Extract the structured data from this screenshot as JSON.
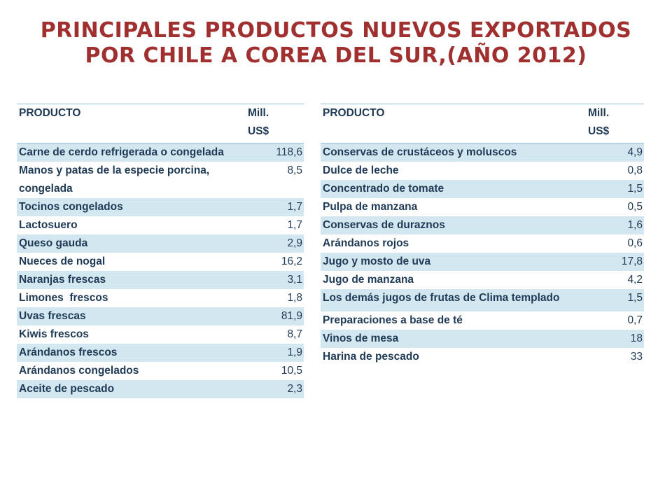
{
  "title": {
    "line1": "PRINCIPALES PRODUCTOS NUEVOS EXPORTADOS",
    "line2": "POR CHILE A COREA DEL SUR,(AÑO 2012)"
  },
  "left_table": {
    "header": {
      "product": "PRODUCTO",
      "value_line1": "Mill.",
      "value_line2": "US$"
    },
    "rows": [
      {
        "product": "Carne de cerdo refrigerada o congelada",
        "value": "118,6"
      },
      {
        "product": "Manos y patas de la especie porcina, congelada",
        "value": "8,5"
      },
      {
        "product": "Tocinos congelados",
        "value": "1,7"
      },
      {
        "product": "Lactosuero",
        "value": "1,7"
      },
      {
        "product": "Queso gauda",
        "value": "2,9"
      },
      {
        "product": "Nueces de nogal",
        "value": "16,2"
      },
      {
        "product": "Naranjas frescas",
        "value": "3,1"
      },
      {
        "product": "Limones  frescos",
        "value": "1,8"
      },
      {
        "product": "Uvas frescas",
        "value": "81,9"
      },
      {
        "product": "Kiwis frescos",
        "value": "8,7"
      },
      {
        "product": "Arándanos frescos",
        "value": "1,9"
      },
      {
        "product": "Arándanos congelados",
        "value": "10,5"
      },
      {
        "product": "Aceite de pescado",
        "value": "2,3"
      }
    ]
  },
  "right_table": {
    "header": {
      "product": "PRODUCTO",
      "value_line1": "Mill.",
      "value_line2": "US$"
    },
    "rows": [
      {
        "product": "Conservas de crustáceos y moluscos",
        "value": "4,9"
      },
      {
        "product": "Dulce de leche",
        "value": "0,8"
      },
      {
        "product": "Concentrado de tomate",
        "value": "1,5"
      },
      {
        "product": "Pulpa de manzana",
        "value": "0,5"
      },
      {
        "product": "Conservas de duraznos",
        "value": "1,6"
      },
      {
        "product": "Arándanos rojos",
        "value": "0,6"
      },
      {
        "product": "Jugo y mosto de uva",
        "value": "17,8"
      },
      {
        "product": "Jugo de manzana",
        "value": "4,2"
      },
      {
        "product": "Los demás jugos de frutas de Clima templado",
        "value": "1,5"
      },
      {
        "product": "Preparaciones a base de té",
        "value": "0,7"
      },
      {
        "product": "Vinos de mesa",
        "value": "18"
      },
      {
        "product": "Harina de pescado",
        "value": "33"
      }
    ]
  }
}
